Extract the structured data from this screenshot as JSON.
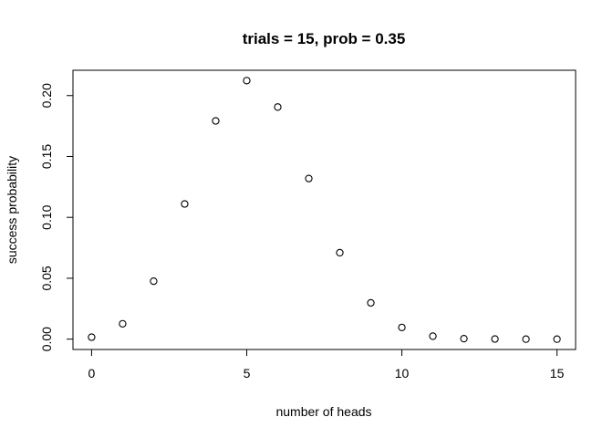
{
  "chart_data": {
    "type": "scatter",
    "title": "trials = 15, prob = 0.35",
    "xlabel": "number of heads",
    "ylabel": "success probability",
    "x": [
      0,
      1,
      2,
      3,
      4,
      5,
      6,
      7,
      8,
      9,
      10,
      11,
      12,
      13,
      14,
      15
    ],
    "y": [
      0.0016,
      0.0126,
      0.0476,
      0.111,
      0.1792,
      0.2123,
      0.1906,
      0.1319,
      0.071,
      0.0298,
      0.0096,
      0.0024,
      0.0004,
      0.0001,
      0.0,
      0.0
    ],
    "xlim": [
      -0.6,
      15.6
    ],
    "ylim": [
      -0.0085,
      0.2208
    ],
    "xticks": [
      0,
      5,
      10,
      15
    ],
    "xtick_labels": [
      "0",
      "5",
      "10",
      "15"
    ],
    "yticks": [
      0.0,
      0.05,
      0.1,
      0.15,
      0.2
    ],
    "ytick_labels": [
      "0.00",
      "0.05",
      "0.10",
      "0.15",
      "0.20"
    ],
    "grid": false,
    "marker": "open-circle",
    "marker_color": "#000000"
  }
}
